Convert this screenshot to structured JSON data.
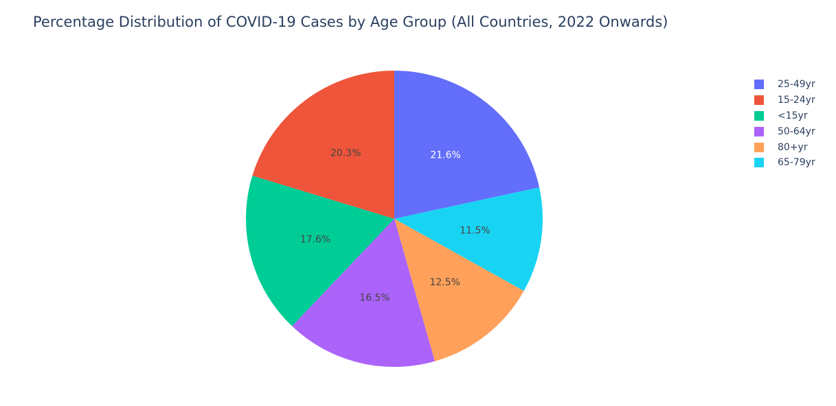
{
  "title": "Percentage Distribution of COVID-19 Cases by Age Group (All Countries, 2022 Onwards)",
  "chart_data": {
    "type": "pie",
    "title": "Percentage Distribution of COVID-19 Cases by Age Group (All Countries, 2022 Onwards)",
    "direction": "clockwise",
    "start": "top",
    "legend_position": "right",
    "labels": [
      "25-49yr",
      "15-24yr",
      "<15yr",
      "50-64yr",
      "80+yr",
      "65-79yr"
    ],
    "values": [
      21.6,
      20.3,
      17.6,
      16.5,
      12.5,
      11.5
    ],
    "slice_labels": [
      "21.6%",
      "20.3%",
      "17.6%",
      "16.5%",
      "12.5%",
      "11.5%"
    ],
    "colors": [
      "#636efa",
      "#EF553B",
      "#00cc96",
      "#ab63fa",
      "#FFA15A",
      "#19d3f3"
    ],
    "draw_order": [
      "25-49yr",
      "65-79yr",
      "80+yr",
      "50-64yr",
      "<15yr",
      "15-24yr"
    ],
    "label_text_colors": {
      "25-49yr": "#ffffff",
      "15-24yr": "#444444",
      "<15yr": "#444444",
      "50-64yr": "#444444",
      "80+yr": "#444444",
      "65-79yr": "#444444"
    }
  }
}
